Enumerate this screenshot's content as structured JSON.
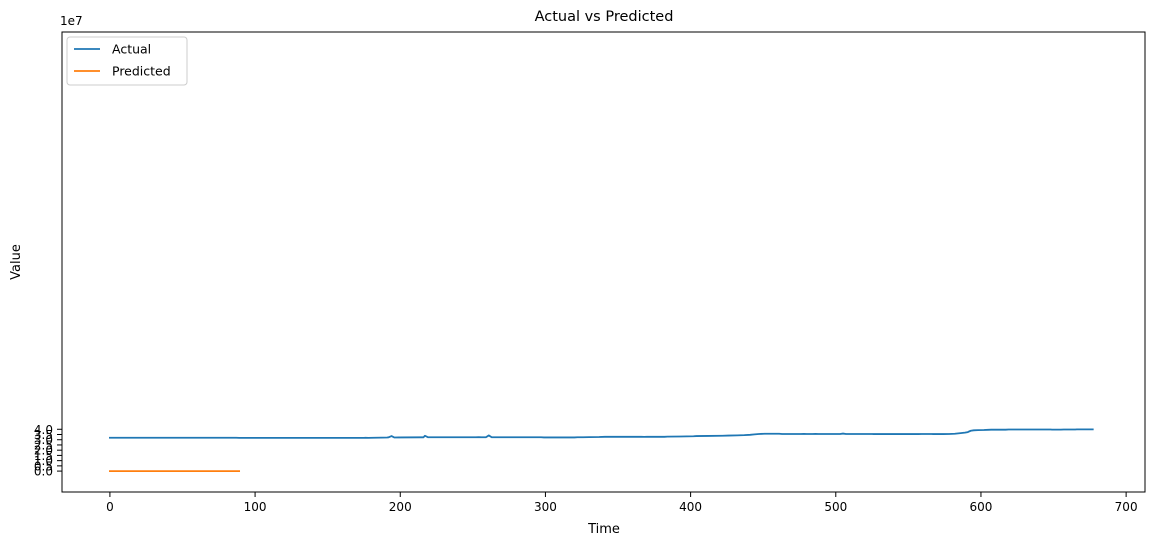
{
  "chart_data": {
    "type": "line",
    "title": "Actual vs Predicted",
    "xlabel": "Time",
    "ylabel": "Value",
    "y_scale_label": "1e7",
    "xlim": [
      -33,
      713
    ],
    "ylim": [
      -2.0,
      42.0
    ],
    "y_units_multiplier": 10000000,
    "x_ticks": [
      0,
      100,
      200,
      300,
      400,
      500,
      600,
      700
    ],
    "x_tick_labels": [
      "0",
      "100",
      "200",
      "300",
      "400",
      "500",
      "600",
      "700"
    ],
    "y_ticks": [
      0.0,
      0.5,
      1.0,
      1.5,
      2.0,
      2.5,
      3.0,
      3.5,
      4.0
    ],
    "y_tick_labels": [
      "0.0",
      "0.5",
      "1.0",
      "1.5",
      "2.0",
      "2.5",
      "3.0",
      "3.5",
      "4.0"
    ],
    "grid": false,
    "legend_position": "top-left",
    "series": [
      {
        "name": "Actual",
        "color": "#1f77b4",
        "points": [
          [
            0,
            3.19
          ],
          [
            87,
            3.19
          ],
          [
            89,
            3.18
          ],
          [
            175,
            3.18
          ],
          [
            176,
            3.19
          ],
          [
            178,
            3.18
          ],
          [
            182,
            3.19
          ],
          [
            187,
            3.2
          ],
          [
            191,
            3.21
          ],
          [
            192,
            3.23
          ],
          [
            194,
            3.35
          ],
          [
            196,
            3.21
          ],
          [
            199,
            3.22
          ],
          [
            214,
            3.23
          ],
          [
            216,
            3.23
          ],
          [
            217,
            3.38
          ],
          [
            219,
            3.24
          ],
          [
            252,
            3.24
          ],
          [
            254,
            3.25
          ],
          [
            256,
            3.24
          ],
          [
            259,
            3.24
          ],
          [
            261,
            3.41
          ],
          [
            263,
            3.24
          ],
          [
            297,
            3.24
          ],
          [
            299,
            3.22
          ],
          [
            320,
            3.22
          ],
          [
            322,
            3.24
          ],
          [
            326,
            3.24
          ],
          [
            330,
            3.25
          ],
          [
            337,
            3.26
          ],
          [
            341,
            3.28
          ],
          [
            366,
            3.28
          ],
          [
            368,
            3.27
          ],
          [
            370,
            3.28
          ],
          [
            382,
            3.28
          ],
          [
            384,
            3.3
          ],
          [
            393,
            3.31
          ],
          [
            402,
            3.33
          ],
          [
            404,
            3.35
          ],
          [
            412,
            3.36
          ],
          [
            422,
            3.38
          ],
          [
            426,
            3.4
          ],
          [
            432,
            3.42
          ],
          [
            437,
            3.44
          ],
          [
            441,
            3.47
          ],
          [
            444,
            3.51
          ],
          [
            447,
            3.55
          ],
          [
            451,
            3.57
          ],
          [
            461,
            3.57
          ],
          [
            463,
            3.55
          ],
          [
            476,
            3.55
          ],
          [
            478,
            3.56
          ],
          [
            480,
            3.55
          ],
          [
            484,
            3.55
          ],
          [
            486,
            3.56
          ],
          [
            488,
            3.55
          ],
          [
            503,
            3.55
          ],
          [
            505,
            3.59
          ],
          [
            507,
            3.55
          ],
          [
            525,
            3.55
          ],
          [
            526,
            3.54
          ],
          [
            546,
            3.54
          ],
          [
            548,
            3.55
          ],
          [
            552,
            3.54
          ],
          [
            557,
            3.54
          ],
          [
            559,
            3.55
          ],
          [
            566,
            3.55
          ],
          [
            567,
            3.54
          ],
          [
            574,
            3.54
          ],
          [
            578,
            3.55
          ],
          [
            582,
            3.57
          ],
          [
            586,
            3.63
          ],
          [
            589,
            3.68
          ],
          [
            591,
            3.73
          ],
          [
            592,
            3.8
          ],
          [
            593,
            3.86
          ],
          [
            595,
            3.9
          ],
          [
            598,
            3.92
          ],
          [
            602,
            3.93
          ],
          [
            605,
            3.95
          ],
          [
            607,
            3.96
          ],
          [
            617,
            3.96
          ],
          [
            619,
            3.98
          ],
          [
            648,
            3.98
          ],
          [
            649,
            3.97
          ],
          [
            655,
            3.97
          ],
          [
            657,
            3.98
          ],
          [
            665,
            3.98
          ],
          [
            666,
            3.99
          ],
          [
            677,
            3.99
          ]
        ]
      },
      {
        "name": "Predicted",
        "color": "#ff7f0e",
        "points": [
          [
            0,
            0.0
          ],
          [
            89,
            0.0
          ]
        ]
      }
    ]
  }
}
